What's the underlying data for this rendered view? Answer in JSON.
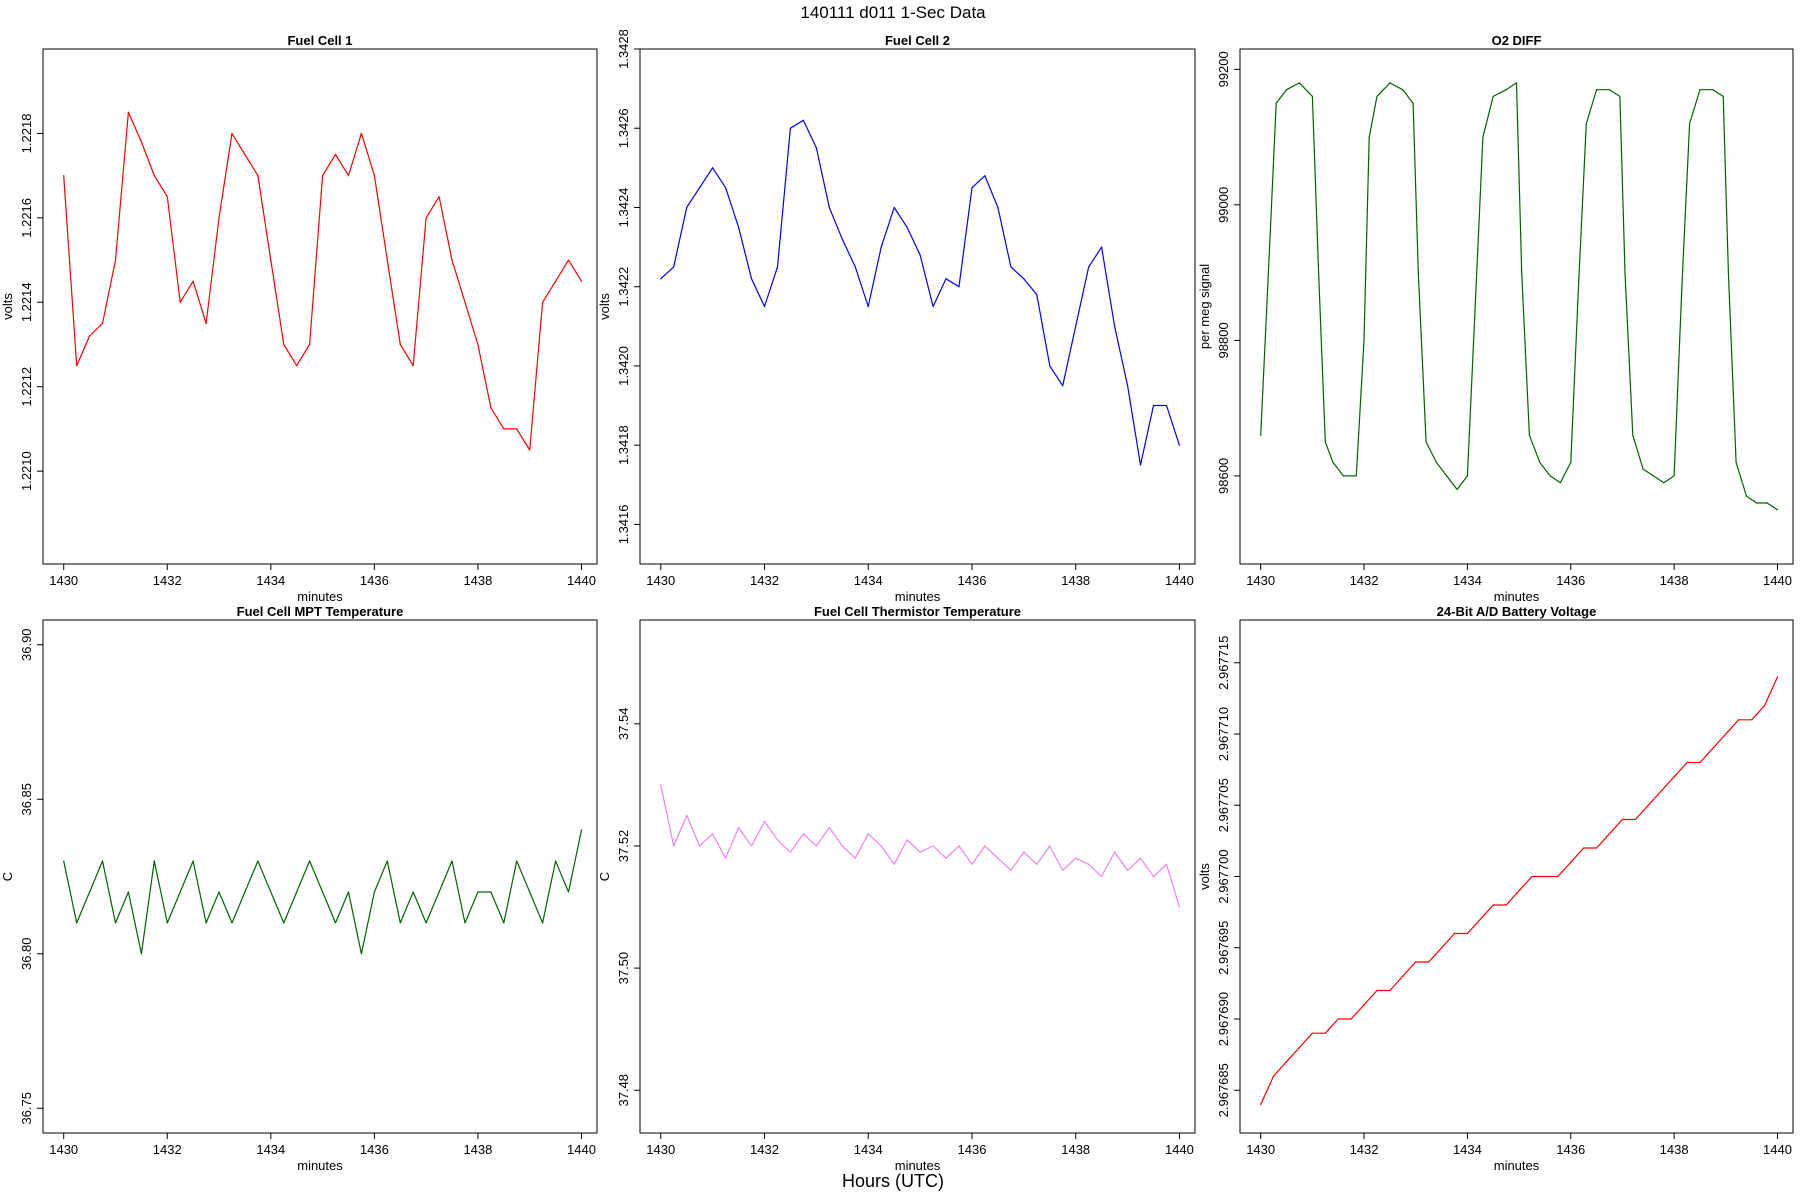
{
  "figure": {
    "title": "140111   d011   1-Sec Data",
    "xlabel": "Hours (UTC)"
  },
  "chart_data": [
    {
      "type": "line",
      "title": "Fuel Cell 1",
      "xlabel": "minutes",
      "ylabel": "volts",
      "color": "#ff0000",
      "xlim": [
        1429.6,
        1440.3
      ],
      "ylim": [
        1.22078,
        1.222
      ],
      "xticks": [
        1430,
        1432,
        1434,
        1436,
        1438,
        1440
      ],
      "xtick_labels": [
        "1430",
        "1432",
        "1434",
        "1436",
        "1438",
        "1440"
      ],
      "yticks": [
        1.221,
        1.2212,
        1.2214,
        1.2216,
        1.2218
      ],
      "ytick_labels": [
        "1.2210",
        "1.2212",
        "1.2214",
        "1.2216",
        "1.2218"
      ],
      "x": [
        1430.0,
        1430.25,
        1430.5,
        1430.75,
        1431.0,
        1431.25,
        1431.5,
        1431.75,
        1432.0,
        1432.25,
        1432.5,
        1432.75,
        1433.0,
        1433.25,
        1433.5,
        1433.75,
        1434.0,
        1434.25,
        1434.5,
        1434.75,
        1435.0,
        1435.25,
        1435.5,
        1435.75,
        1436.0,
        1436.25,
        1436.5,
        1436.75,
        1437.0,
        1437.25,
        1437.5,
        1437.75,
        1438.0,
        1438.25,
        1438.5,
        1438.75,
        1439.0,
        1439.25,
        1439.5,
        1439.75,
        1440.0
      ],
      "values": [
        1.2217,
        1.22125,
        1.22132,
        1.22135,
        1.2215,
        1.22185,
        1.22178,
        1.2217,
        1.22165,
        1.2214,
        1.22145,
        1.22135,
        1.2216,
        1.2218,
        1.22175,
        1.2217,
        1.2215,
        1.2213,
        1.22125,
        1.2213,
        1.2217,
        1.22175,
        1.2217,
        1.2218,
        1.2217,
        1.2215,
        1.2213,
        1.22125,
        1.2216,
        1.22165,
        1.2215,
        1.2214,
        1.2213,
        1.22115,
        1.2211,
        1.2211,
        1.22105,
        1.2214,
        1.22145,
        1.2215,
        1.22145
      ]
    },
    {
      "type": "line",
      "title": "Fuel Cell 2",
      "xlabel": "minutes",
      "ylabel": "volts",
      "color": "#0000ff",
      "xlim": [
        1429.6,
        1440.3
      ],
      "ylim": [
        1.3415,
        1.3428
      ],
      "xticks": [
        1430,
        1432,
        1434,
        1436,
        1438,
        1440
      ],
      "xtick_labels": [
        "1430",
        "1432",
        "1434",
        "1436",
        "1438",
        "1440"
      ],
      "yticks": [
        1.3416,
        1.3418,
        1.342,
        1.3422,
        1.3424,
        1.3426,
        1.3428
      ],
      "ytick_labels": [
        "1.3416",
        "1.3418",
        "1.3420",
        "1.3422",
        "1.3424",
        "1.3426",
        "1.3428"
      ],
      "x": [
        1430.0,
        1430.25,
        1430.5,
        1430.75,
        1431.0,
        1431.25,
        1431.5,
        1431.75,
        1432.0,
        1432.25,
        1432.5,
        1432.75,
        1433.0,
        1433.25,
        1433.5,
        1433.75,
        1434.0,
        1434.25,
        1434.5,
        1434.75,
        1435.0,
        1435.25,
        1435.5,
        1435.75,
        1436.0,
        1436.25,
        1436.5,
        1436.75,
        1437.0,
        1437.25,
        1437.5,
        1437.75,
        1438.0,
        1438.25,
        1438.5,
        1438.75,
        1439.0,
        1439.25,
        1439.5,
        1439.75,
        1440.0
      ],
      "values": [
        1.34222,
        1.34225,
        1.3424,
        1.34245,
        1.3425,
        1.34245,
        1.34235,
        1.34222,
        1.34215,
        1.34225,
        1.3426,
        1.34262,
        1.34255,
        1.3424,
        1.34232,
        1.34225,
        1.34215,
        1.3423,
        1.3424,
        1.34235,
        1.34228,
        1.34215,
        1.34222,
        1.3422,
        1.34245,
        1.34248,
        1.3424,
        1.34225,
        1.34222,
        1.34218,
        1.342,
        1.34195,
        1.3421,
        1.34225,
        1.3423,
        1.3421,
        1.34195,
        1.34175,
        1.3419,
        1.3419,
        1.3418
      ]
    },
    {
      "type": "line",
      "title": "O2 DIFF",
      "xlabel": "minutes",
      "ylabel": "per meg signal",
      "color": "#006400",
      "xlim": [
        1429.6,
        1440.3
      ],
      "ylim": [
        98470,
        99230
      ],
      "xticks": [
        1430,
        1432,
        1434,
        1436,
        1438,
        1440
      ],
      "xtick_labels": [
        "1430",
        "1432",
        "1434",
        "1436",
        "1438",
        "1440"
      ],
      "yticks": [
        98600,
        98800,
        99000,
        99200
      ],
      "ytick_labels": [
        "98600",
        "98800",
        "99000",
        "99200"
      ],
      "x": [
        1430.0,
        1430.15,
        1430.3,
        1430.5,
        1430.75,
        1431.0,
        1431.12,
        1431.25,
        1431.4,
        1431.6,
        1431.85,
        1432.0,
        1432.1,
        1432.25,
        1432.5,
        1432.75,
        1432.95,
        1433.05,
        1433.2,
        1433.4,
        1433.6,
        1433.8,
        1434.0,
        1434.15,
        1434.3,
        1434.5,
        1434.75,
        1434.95,
        1435.05,
        1435.2,
        1435.4,
        1435.6,
        1435.8,
        1436.0,
        1436.15,
        1436.3,
        1436.5,
        1436.75,
        1436.95,
        1437.05,
        1437.2,
        1437.4,
        1437.6,
        1437.8,
        1438.0,
        1438.15,
        1438.3,
        1438.5,
        1438.75,
        1438.95,
        1439.05,
        1439.2,
        1439.4,
        1439.6,
        1439.8,
        1440.0
      ],
      "values": [
        98660,
        98900,
        99150,
        99170,
        99180,
        99160,
        98900,
        98650,
        98620,
        98600,
        98600,
        98800,
        99100,
        99160,
        99180,
        99170,
        99150,
        98900,
        98650,
        98620,
        98600,
        98580,
        98600,
        98850,
        99100,
        99160,
        99170,
        99180,
        98900,
        98660,
        98620,
        98600,
        98590,
        98620,
        98880,
        99120,
        99170,
        99170,
        99160,
        98900,
        98660,
        98610,
        98600,
        98590,
        98600,
        98880,
        99120,
        99170,
        99170,
        99160,
        98900,
        98620,
        98570,
        98560,
        98560,
        98550
      ]
    },
    {
      "type": "line",
      "title": "Fuel Cell MPT Temperature",
      "xlabel": "minutes",
      "ylabel": "C",
      "color": "#006400",
      "xlim": [
        1429.6,
        1440.3
      ],
      "ylim": [
        36.742,
        36.908
      ],
      "xticks": [
        1430,
        1432,
        1434,
        1436,
        1438,
        1440
      ],
      "xtick_labels": [
        "1430",
        "1432",
        "1434",
        "1436",
        "1438",
        "1440"
      ],
      "yticks": [
        36.75,
        36.8,
        36.85,
        36.9
      ],
      "ytick_labels": [
        "36.75",
        "36.80",
        "36.85",
        "36.90"
      ],
      "x": [
        1430.0,
        1430.25,
        1430.5,
        1430.75,
        1431.0,
        1431.25,
        1431.5,
        1431.75,
        1432.0,
        1432.25,
        1432.5,
        1432.75,
        1433.0,
        1433.25,
        1433.5,
        1433.75,
        1434.0,
        1434.25,
        1434.5,
        1434.75,
        1435.0,
        1435.25,
        1435.5,
        1435.75,
        1436.0,
        1436.25,
        1436.5,
        1436.75,
        1437.0,
        1437.25,
        1437.5,
        1437.75,
        1438.0,
        1438.25,
        1438.5,
        1438.75,
        1439.0,
        1439.25,
        1439.5,
        1439.75,
        1440.0
      ],
      "values": [
        36.83,
        36.81,
        36.82,
        36.83,
        36.81,
        36.82,
        36.8,
        36.83,
        36.81,
        36.82,
        36.83,
        36.81,
        36.82,
        36.81,
        36.82,
        36.83,
        36.82,
        36.81,
        36.82,
        36.83,
        36.82,
        36.81,
        36.82,
        36.8,
        36.82,
        36.83,
        36.81,
        36.82,
        36.81,
        36.82,
        36.83,
        36.81,
        36.82,
        36.82,
        36.81,
        36.83,
        36.82,
        36.81,
        36.83,
        36.82,
        36.84
      ]
    },
    {
      "type": "line",
      "title": "Fuel Cell Thermistor Temperature",
      "xlabel": "minutes",
      "ylabel": "C",
      "color": "#ee82ee",
      "xlim": [
        1429.6,
        1440.3
      ],
      "ylim": [
        37.473,
        37.557
      ],
      "xticks": [
        1430,
        1432,
        1434,
        1436,
        1438,
        1440
      ],
      "xtick_labels": [
        "1430",
        "1432",
        "1434",
        "1436",
        "1438",
        "1440"
      ],
      "yticks": [
        37.48,
        37.5,
        37.52,
        37.54
      ],
      "ytick_labels": [
        "37.48",
        "37.50",
        "37.52",
        "37.54"
      ],
      "x": [
        1430.0,
        1430.25,
        1430.5,
        1430.75,
        1431.0,
        1431.25,
        1431.5,
        1431.75,
        1432.0,
        1432.25,
        1432.5,
        1432.75,
        1433.0,
        1433.25,
        1433.5,
        1433.75,
        1434.0,
        1434.25,
        1434.5,
        1434.75,
        1435.0,
        1435.25,
        1435.5,
        1435.75,
        1436.0,
        1436.25,
        1436.5,
        1436.75,
        1437.0,
        1437.25,
        1437.5,
        1437.75,
        1438.0,
        1438.25,
        1438.5,
        1438.75,
        1439.0,
        1439.25,
        1439.5,
        1439.75,
        1440.0
      ],
      "values": [
        37.53,
        37.52,
        37.525,
        37.52,
        37.522,
        37.518,
        37.523,
        37.52,
        37.524,
        37.521,
        37.519,
        37.522,
        37.52,
        37.523,
        37.52,
        37.518,
        37.522,
        37.52,
        37.517,
        37.521,
        37.519,
        37.52,
        37.518,
        37.52,
        37.517,
        37.52,
        37.518,
        37.516,
        37.519,
        37.517,
        37.52,
        37.516,
        37.518,
        37.517,
        37.515,
        37.519,
        37.516,
        37.518,
        37.515,
        37.517,
        37.51
      ]
    },
    {
      "type": "line",
      "title": "24-Bit A/D Battery Voltage",
      "xlabel": "minutes",
      "ylabel": "volts",
      "color": "#ff0000",
      "xlim": [
        1429.6,
        1440.3
      ],
      "ylim": [
        2.967682,
        2.967718
      ],
      "xticks": [
        1430,
        1432,
        1434,
        1436,
        1438,
        1440
      ],
      "xtick_labels": [
        "1430",
        "1432",
        "1434",
        "1436",
        "1438",
        "1440"
      ],
      "yticks": [
        2.967685,
        2.96769,
        2.967695,
        2.9677,
        2.967705,
        2.96771,
        2.967715
      ],
      "ytick_labels": [
        "2.967685",
        "2.967690",
        "2.967695",
        "2.967700",
        "2.967705",
        "2.967710",
        "2.967715"
      ],
      "x": [
        1430.0,
        1430.25,
        1430.5,
        1430.75,
        1431.0,
        1431.25,
        1431.5,
        1431.75,
        1432.0,
        1432.25,
        1432.5,
        1432.75,
        1433.0,
        1433.25,
        1433.5,
        1433.75,
        1434.0,
        1434.25,
        1434.5,
        1434.75,
        1435.0,
        1435.25,
        1435.5,
        1435.75,
        1436.0,
        1436.25,
        1436.5,
        1436.75,
        1437.0,
        1437.25,
        1437.5,
        1437.75,
        1438.0,
        1438.25,
        1438.5,
        1438.75,
        1439.0,
        1439.25,
        1439.5,
        1439.75,
        1440.0
      ],
      "values": [
        2.967684,
        2.967686,
        2.967687,
        2.967688,
        2.967689,
        2.967689,
        2.96769,
        2.96769,
        2.967691,
        2.967692,
        2.967692,
        2.967693,
        2.967694,
        2.967694,
        2.967695,
        2.967696,
        2.967696,
        2.967697,
        2.967698,
        2.967698,
        2.967699,
        2.9677,
        2.9677,
        2.9677,
        2.967701,
        2.967702,
        2.967702,
        2.967703,
        2.967704,
        2.967704,
        2.967705,
        2.967706,
        2.967707,
        2.967708,
        2.967708,
        2.967709,
        2.96771,
        2.967711,
        2.967711,
        2.967712,
        2.967714
      ]
    }
  ]
}
